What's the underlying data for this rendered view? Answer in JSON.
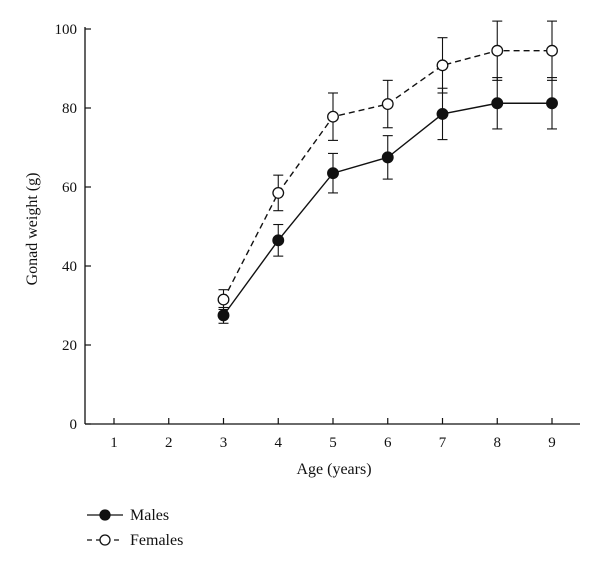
{
  "chart_data": {
    "type": "line",
    "xlabel": "Age (years)",
    "ylabel": "Gonad weight (g)",
    "x_ticks": [
      "1",
      "2",
      "3",
      "4",
      "5",
      "6",
      "7",
      "8",
      "9"
    ],
    "y_ticks": [
      "0",
      "20",
      "40",
      "60",
      "80",
      "100"
    ],
    "xlim": [
      0.5,
      9.5
    ],
    "ylim": [
      0,
      100
    ],
    "grid": false,
    "legend_position": "bottom-left",
    "series": [
      {
        "name": "Males",
        "marker": "filled-circle",
        "line_style": "solid",
        "x": [
          3,
          4,
          5,
          6,
          7,
          8,
          9
        ],
        "y": [
          27.5,
          46.5,
          63.5,
          67.5,
          78.5,
          81.2,
          81.2
        ],
        "err": [
          2.0,
          4.0,
          5.0,
          5.5,
          6.5,
          6.5,
          6.5
        ]
      },
      {
        "name": "Females",
        "marker": "open-circle",
        "line_style": "dashed",
        "x": [
          3,
          4,
          5,
          6,
          7,
          8,
          9
        ],
        "y": [
          31.5,
          58.5,
          77.8,
          81.0,
          90.8,
          94.5,
          94.5
        ],
        "err": [
          2.5,
          4.5,
          6.0,
          6.0,
          7.0,
          7.5,
          7.5
        ]
      }
    ]
  }
}
